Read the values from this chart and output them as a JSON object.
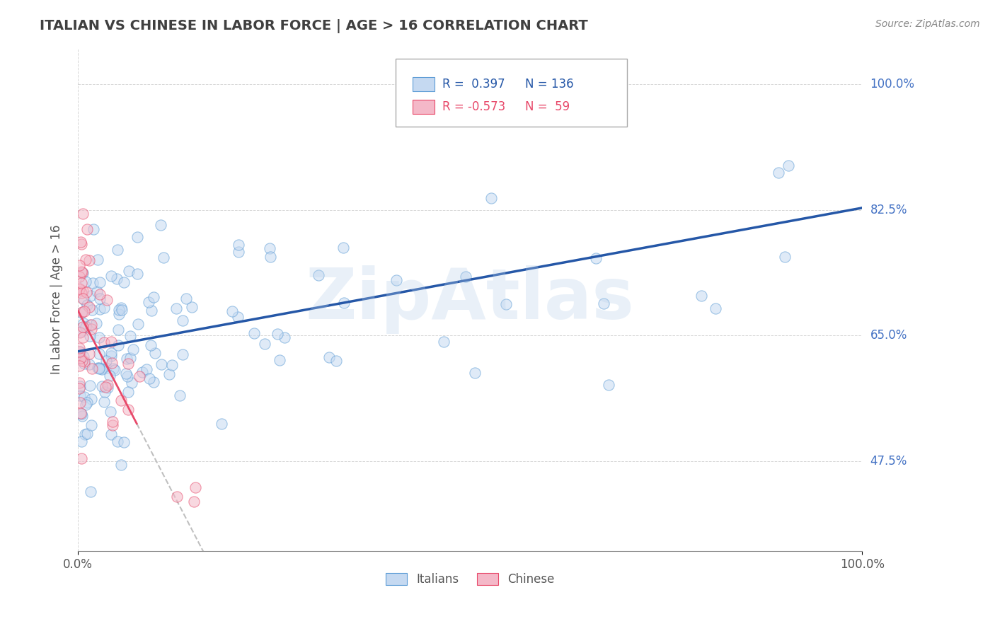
{
  "title": "ITALIAN VS CHINESE IN LABOR FORCE | AGE > 16 CORRELATION CHART",
  "source": "Source: ZipAtlas.com",
  "ylabel": "In Labor Force | Age > 16",
  "xlim": [
    0.0,
    1.0
  ],
  "ylim": [
    0.35,
    1.05
  ],
  "xtick_labels": [
    "0.0%",
    "100.0%"
  ],
  "ytick_labels": [
    "47.5%",
    "65.0%",
    "82.5%",
    "100.0%"
  ],
  "ytick_positions": [
    0.475,
    0.65,
    0.825,
    1.0
  ],
  "watermark": "ZipAtlas",
  "legend_italian_R": "0.397",
  "legend_italian_N": "136",
  "legend_chinese_R": "-0.573",
  "legend_chinese_N": "59",
  "italian_fill_color": "#c5d9f1",
  "italian_edge_color": "#5b9bd5",
  "chinese_fill_color": "#f4b8c8",
  "chinese_edge_color": "#e8496a",
  "italian_line_color": "#2557a7",
  "chinese_line_color": "#e8496a",
  "chinese_dash_color": "#c0c0c0",
  "scatter_alpha": 0.55,
  "scatter_size": 120,
  "background_color": "#ffffff",
  "grid_color": "#cccccc",
  "title_color": "#404040",
  "axis_label_color": "#555555",
  "right_label_color": "#4472c4",
  "source_color": "#888888",
  "watermark_color": "#b8d0ea",
  "it_line_x0": 0.0,
  "it_line_y0": 0.628,
  "it_line_x1": 1.0,
  "it_line_y1": 0.828,
  "ch_line_x0": 0.0,
  "ch_line_y0": 0.685,
  "ch_line_x1_solid": 0.075,
  "ch_line_x1_dash": 0.35,
  "ch_line_slope": -2.1
}
